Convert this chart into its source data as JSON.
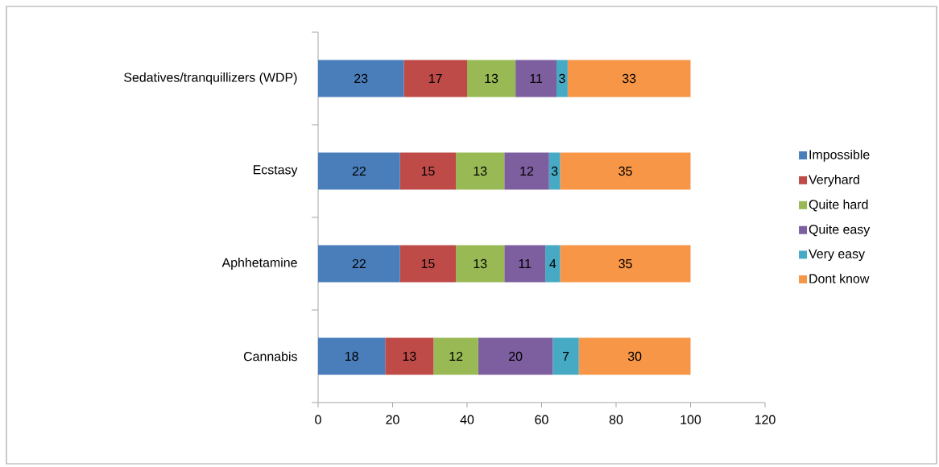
{
  "chart_data": {
    "type": "bar",
    "orientation": "horizontal",
    "stacked": true,
    "categories": [
      "Sedatives/tranquillizers (WDP)",
      "Ecstasy",
      "Aphhetamine",
      "Cannabis"
    ],
    "series": [
      {
        "name": "Impossible",
        "color": "#4a7ebb",
        "values": [
          23,
          22,
          22,
          18
        ]
      },
      {
        "name": "Veryhard",
        "color": "#be4b48",
        "values": [
          17,
          15,
          15,
          13
        ]
      },
      {
        "name": "Quite hard",
        "color": "#98b954",
        "values": [
          13,
          13,
          13,
          12
        ]
      },
      {
        "name": "Quite easy",
        "color": "#7d5fa0",
        "values": [
          11,
          12,
          11,
          20
        ]
      },
      {
        "name": "Very easy",
        "color": "#46aac5",
        "values": [
          3,
          3,
          4,
          7
        ]
      },
      {
        "name": "Dont know",
        "color": "#f79646",
        "values": [
          33,
          35,
          35,
          30
        ]
      }
    ],
    "xlim": [
      0,
      120
    ],
    "xticks": [
      0,
      20,
      40,
      60,
      80,
      100,
      120
    ],
    "grid": false,
    "legend": "right",
    "data_labels": true
  }
}
